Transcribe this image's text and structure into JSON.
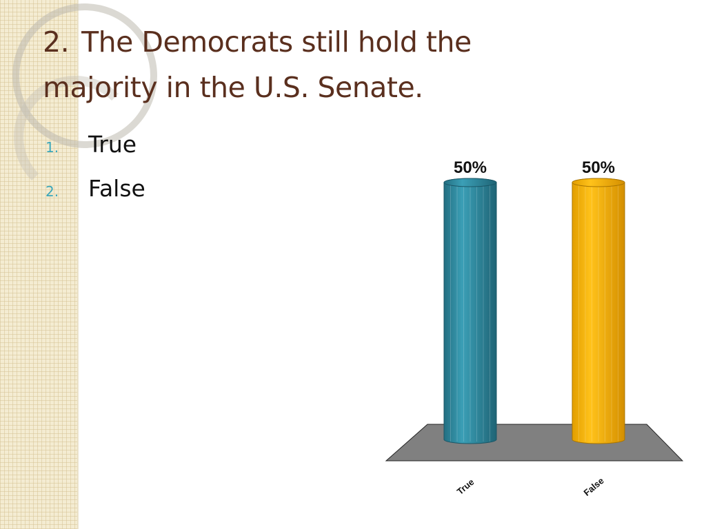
{
  "slide": {
    "title_number": "2.",
    "title_text": "The Democrats still hold the majority in the U.S. Senate."
  },
  "options": [
    {
      "number": "1.",
      "label": "True"
    },
    {
      "number": "2.",
      "label": "False"
    }
  ],
  "colors": {
    "title": "#5a2f1e",
    "option_number": "#3aa6b9",
    "bar_true": "#2e8da3",
    "bar_false": "#f2b10d",
    "floor": "#808080"
  },
  "chart_data": {
    "type": "bar",
    "categories": [
      "True",
      "False"
    ],
    "values": [
      50,
      50
    ],
    "data_labels": [
      "50%",
      "50%"
    ],
    "ylim": [
      0,
      50
    ],
    "grid": false,
    "legend": "none"
  }
}
